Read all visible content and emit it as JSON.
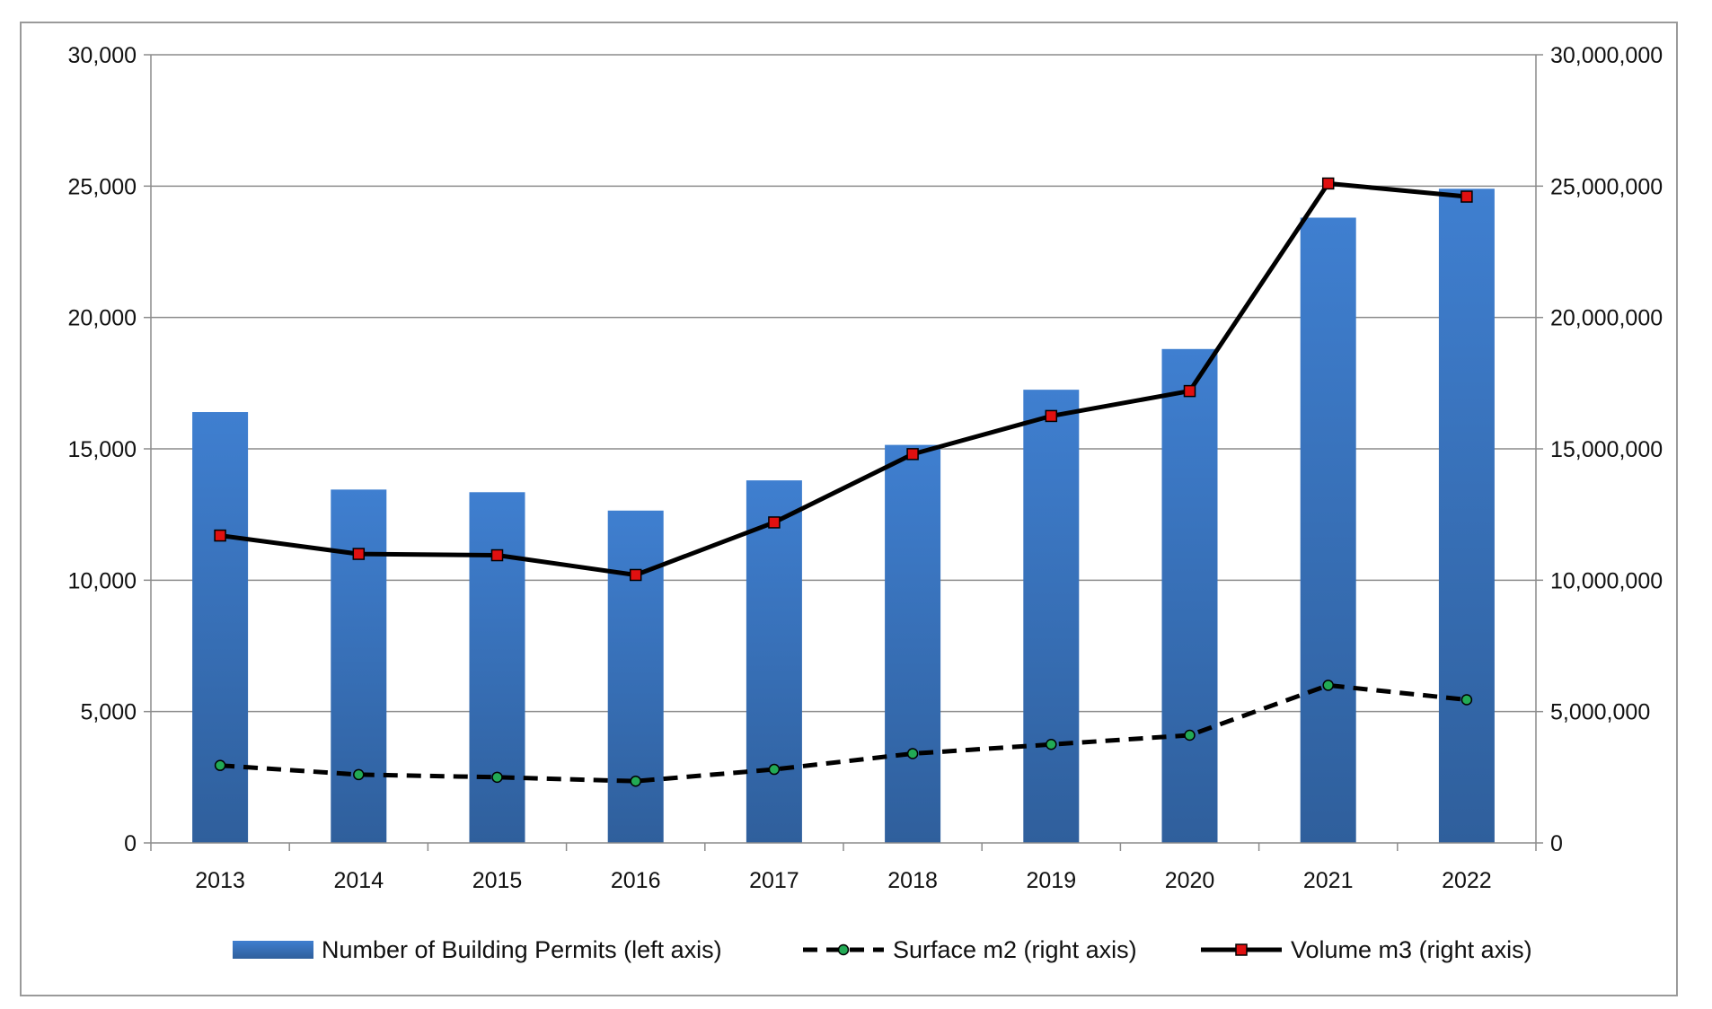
{
  "chart_data": {
    "type": "bar",
    "categories": [
      "2013",
      "2014",
      "2015",
      "2016",
      "2017",
      "2018",
      "2019",
      "2020",
      "2021",
      "2022"
    ],
    "series": [
      {
        "name": "Number of Building Permits (left axis)",
        "type": "bar",
        "axis": "left",
        "color": "#3d78c8",
        "values": [
          16400,
          13450,
          13350,
          12650,
          13800,
          15150,
          17250,
          18800,
          23800,
          24900
        ]
      },
      {
        "name": "Surface m2 (right axis)",
        "type": "line",
        "axis": "right",
        "dashed": true,
        "color": "#000000",
        "marker_color": "#22aa55",
        "values": [
          2950000,
          2600000,
          2500000,
          2350000,
          2800000,
          3400000,
          3750000,
          4100000,
          6000000,
          5450000
        ]
      },
      {
        "name": "Volume m3 (right axis)",
        "type": "line",
        "axis": "right",
        "dashed": false,
        "color": "#000000",
        "marker_color": "#e01010",
        "values": [
          11700000,
          11000000,
          10950000,
          10200000,
          12200000,
          14800000,
          16250000,
          17200000,
          25100000,
          24600000
        ]
      }
    ],
    "left_axis": {
      "min": 0,
      "max": 30000,
      "ticks": [
        0,
        5000,
        10000,
        15000,
        20000,
        25000,
        30000
      ],
      "tick_labels": [
        "0",
        "5,000",
        "10,000",
        "15,000",
        "20,000",
        "25,000",
        "30,000"
      ]
    },
    "right_axis": {
      "min": 0,
      "max": 30000000,
      "ticks": [
        0,
        5000000,
        10000000,
        15000000,
        20000000,
        25000000,
        30000000
      ],
      "tick_labels": [
        "0",
        "5,000,000",
        "10,000,000",
        "15,000,000",
        "20,000,000",
        "25,000,000",
        "30,000,000"
      ]
    },
    "grid": true,
    "legend_position": "bottom"
  }
}
